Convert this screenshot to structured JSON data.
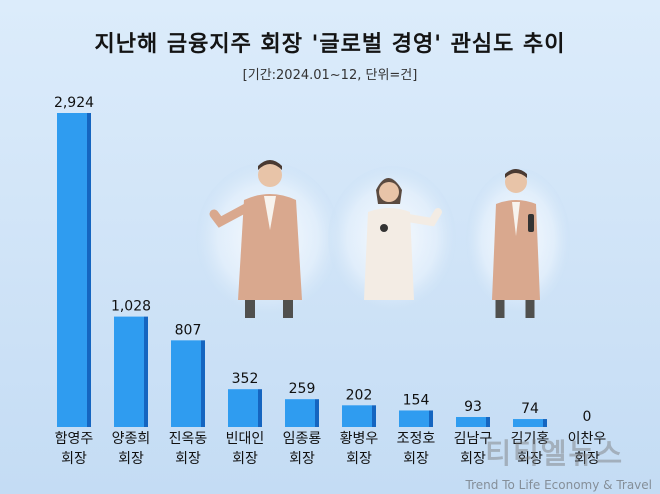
{
  "chart_data": {
    "type": "bar",
    "title": "지난해 금융지주 회장 '글로벌 경영' 관심도 추이",
    "subtitle": "[기간:2024.01~12, 단위=건]",
    "categories": [
      [
        "함영주",
        "회장"
      ],
      [
        "양종희",
        "회장"
      ],
      [
        "진옥동",
        "회장"
      ],
      [
        "빈대인",
        "회장"
      ],
      [
        "임종룡",
        "회장"
      ],
      [
        "황병우",
        "회장"
      ],
      [
        "조정호",
        "회장"
      ],
      [
        "김남구",
        "회장"
      ],
      [
        "김기홍",
        "회장"
      ],
      [
        "이찬우",
        "회장"
      ]
    ],
    "values": [
      2924,
      1028,
      807,
      352,
      259,
      202,
      154,
      93,
      74,
      0
    ],
    "value_labels": [
      "2,924",
      "1,028",
      "807",
      "352",
      "259",
      "202",
      "154",
      "93",
      "74",
      "0"
    ],
    "ylim": [
      0,
      2924
    ],
    "grid": false,
    "colors": {
      "bar_front": "#2f9cf0",
      "bar_side": "#1565c0"
    }
  },
  "watermark": {
    "brand": "티티엘뉴스",
    "tagline": "Trend To Life Economy & Travel"
  }
}
